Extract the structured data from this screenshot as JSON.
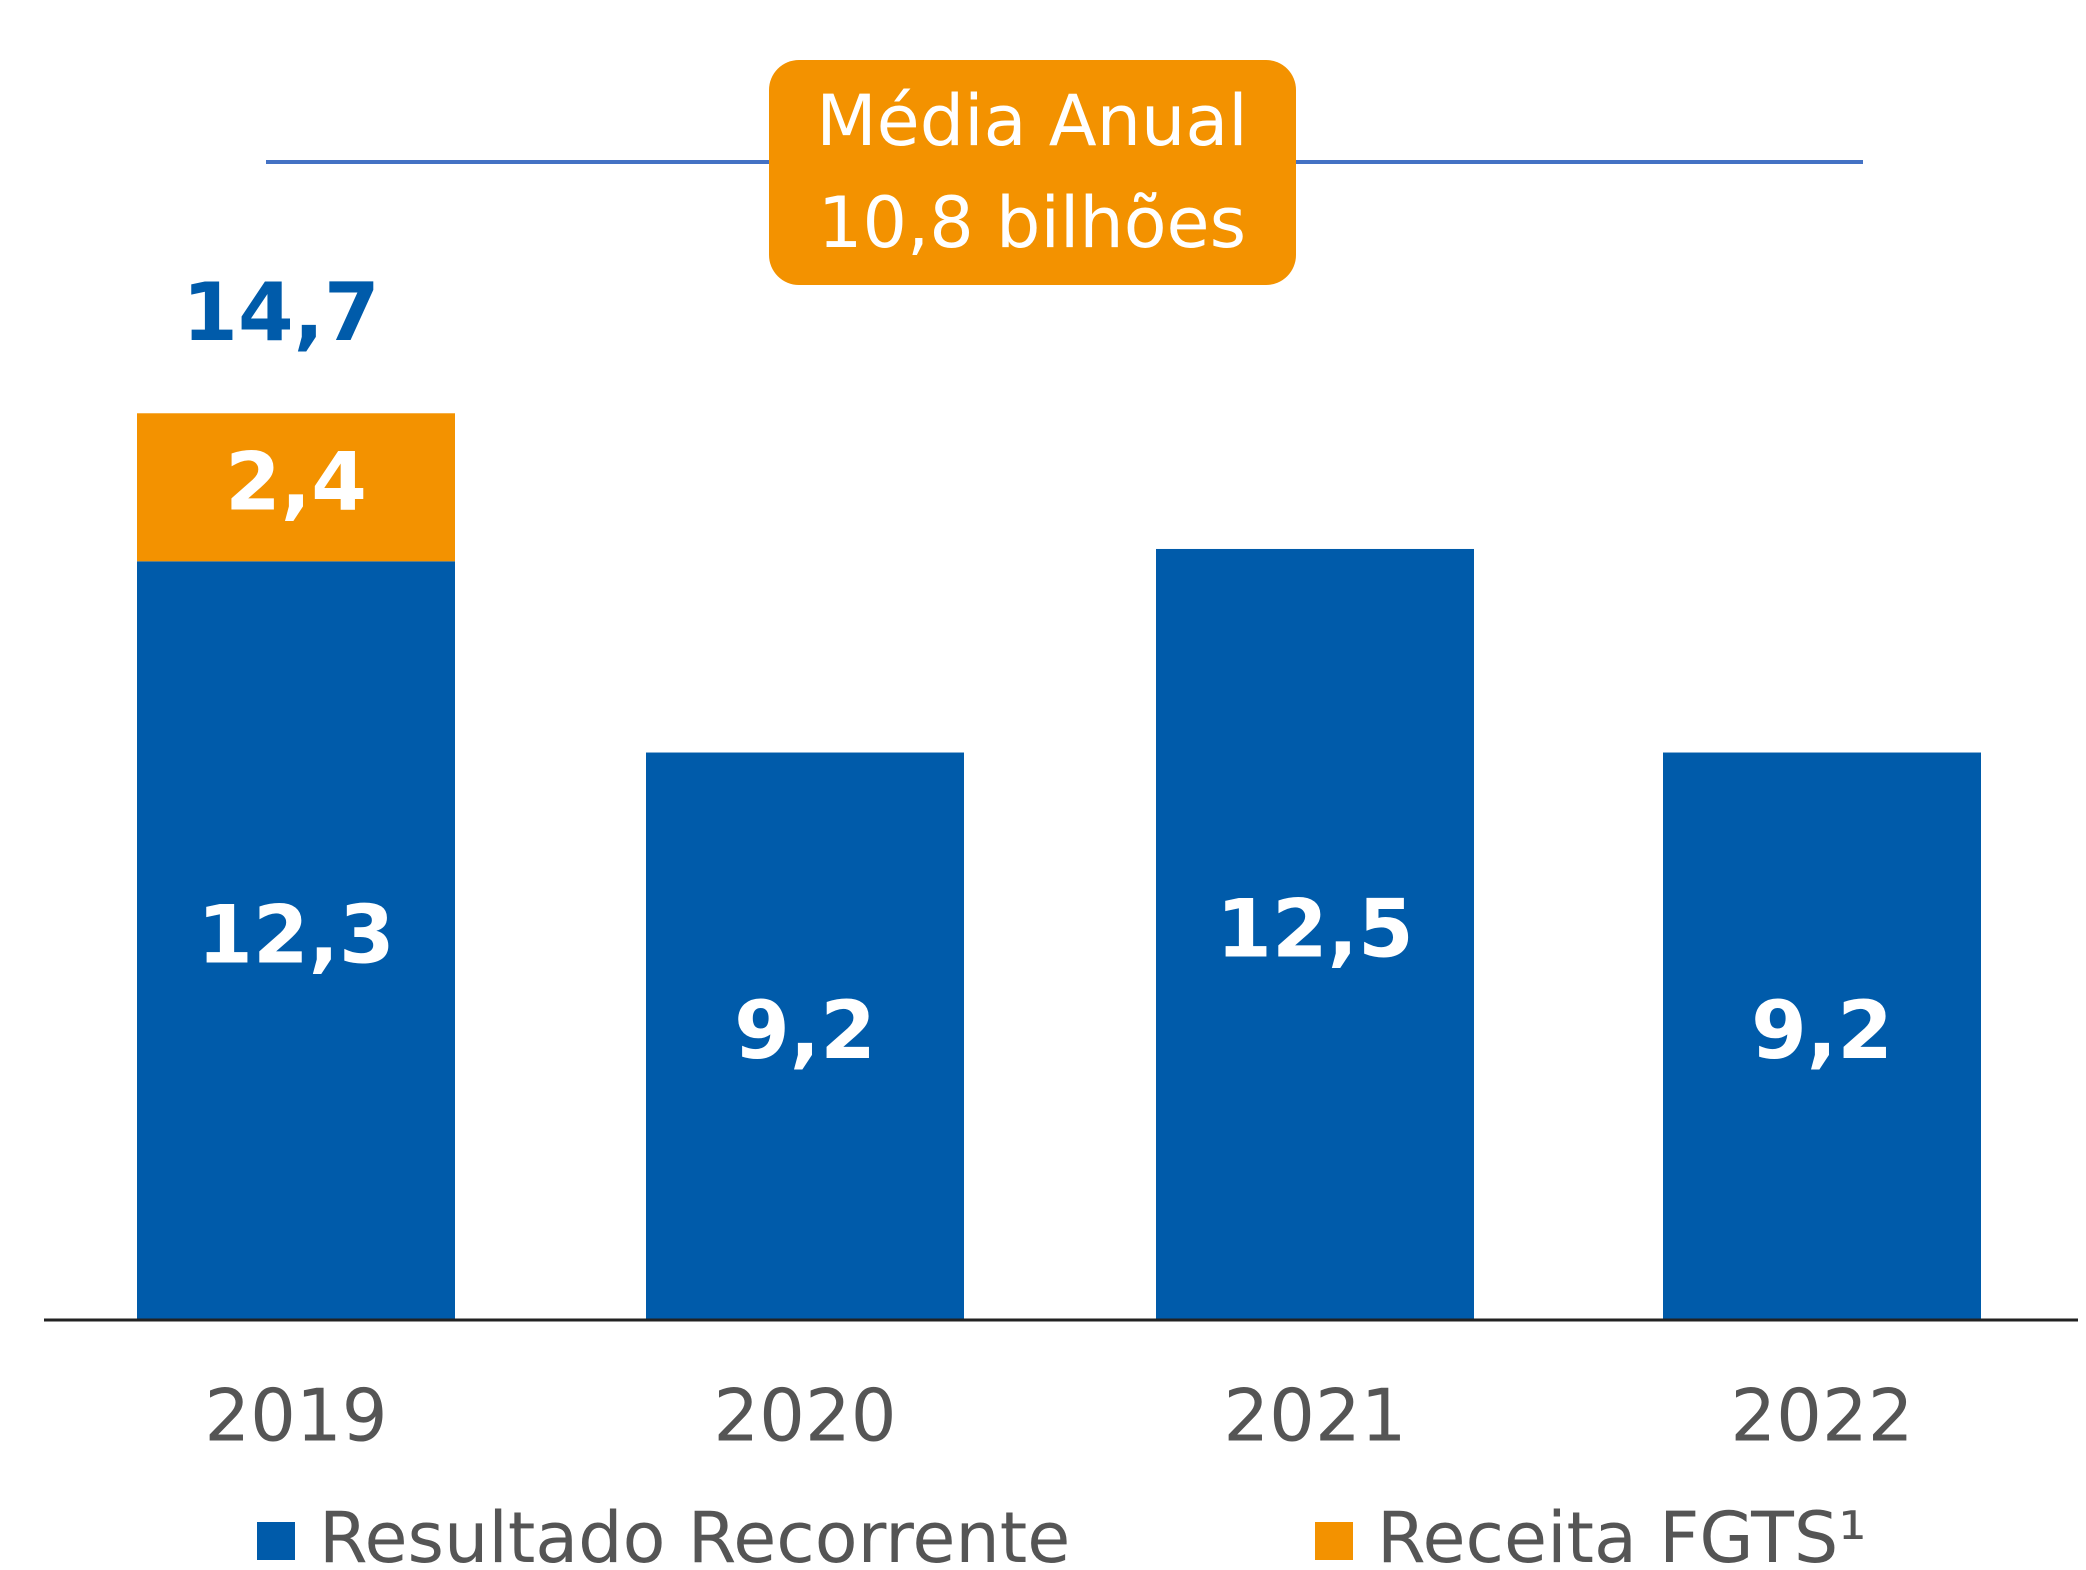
{
  "chart_data": {
    "type": "stacked_bar",
    "categories": [
      "2019",
      "2020",
      "2021",
      "2022"
    ],
    "series": [
      {
        "name": "Resultado Recorrente",
        "color": "#005baa",
        "values": [
          12.3,
          9.2,
          12.5,
          9.2
        ],
        "value_labels": [
          "12,3",
          "9,2",
          "12,5",
          "9,2"
        ]
      },
      {
        "name": "Receita FGTS¹",
        "color": "#f39200",
        "values": [
          2.4,
          null,
          null,
          null
        ],
        "value_labels": [
          "2,4",
          null,
          null,
          null
        ]
      }
    ],
    "totals": [
      14.7,
      null,
      null,
      null
    ],
    "total_labels": [
      "14,7",
      null,
      null,
      null
    ],
    "annotation": {
      "lines": [
        "Média Anual",
        "10,8 bilhões"
      ],
      "color": "#f39200",
      "line_color": "#4472c4"
    },
    "ylim": [
      0,
      21.4
    ],
    "grid": false
  }
}
